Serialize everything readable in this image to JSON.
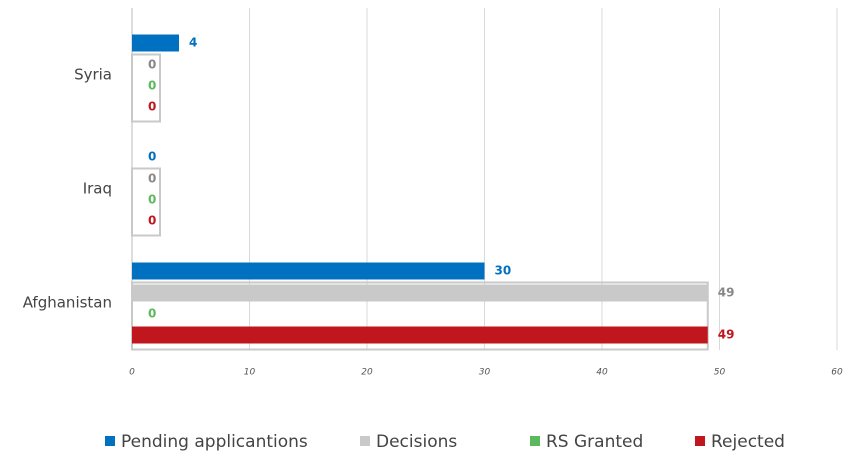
{
  "chart_data": {
    "type": "hbar",
    "categories": [
      "Syria",
      "Iraq",
      "Afghanistan"
    ],
    "series": [
      {
        "name": "Pending applicantions",
        "color": "#0070c0",
        "values": [
          4,
          0,
          30
        ]
      },
      {
        "name": "Decisions",
        "color": "#c9c9c9",
        "values": [
          0,
          0,
          49
        ]
      },
      {
        "name": "RS Granted",
        "color": "#5cb85c",
        "values": [
          0,
          0,
          0
        ]
      },
      {
        "name": "Rejected",
        "color": "#c0161d",
        "values": [
          0,
          0,
          49
        ]
      }
    ],
    "xlim": [
      0,
      60
    ],
    "xticks": [
      0,
      10,
      20,
      30,
      40,
      50,
      60
    ],
    "grid": true,
    "legend": "bottom"
  }
}
